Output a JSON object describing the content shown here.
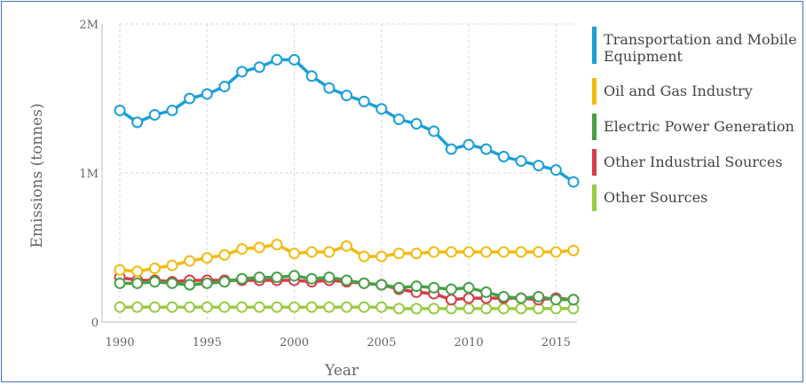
{
  "chart_data": {
    "type": "line",
    "xlabel": "Year",
    "ylabel": "Emissions (tonnes)",
    "xlim": [
      1990,
      2016
    ],
    "ylim": [
      0,
      2000000
    ],
    "x_ticks": [
      1990,
      1995,
      2000,
      2005,
      2010,
      2015
    ],
    "y_ticks": [
      {
        "value": 0,
        "label": "0"
      },
      {
        "value": 1000000,
        "label": "1M"
      },
      {
        "value": 2000000,
        "label": "2M"
      }
    ],
    "grid": true,
    "legend_position": "right",
    "x": [
      1990,
      1991,
      1992,
      1993,
      1994,
      1995,
      1996,
      1997,
      1998,
      1999,
      2000,
      2001,
      2002,
      2003,
      2004,
      2005,
      2006,
      2007,
      2008,
      2009,
      2010,
      2011,
      2012,
      2013,
      2014,
      2015,
      2016
    ],
    "series": [
      {
        "name": "Transportation and Mobile Equipment",
        "legend_lines": [
          "Transportation and Mobile",
          "Equipment"
        ],
        "color": "#1a9fd8",
        "values": [
          1420000,
          1340000,
          1390000,
          1420000,
          1500000,
          1530000,
          1580000,
          1680000,
          1710000,
          1760000,
          1760000,
          1650000,
          1570000,
          1520000,
          1480000,
          1430000,
          1360000,
          1330000,
          1280000,
          1160000,
          1190000,
          1160000,
          1110000,
          1080000,
          1050000,
          1020000,
          940000
        ]
      },
      {
        "name": "Oil and Gas Industry",
        "legend_lines": [
          "Oil and Gas Industry"
        ],
        "color": "#f2bb12",
        "values": [
          350000,
          340000,
          360000,
          380000,
          410000,
          430000,
          450000,
          490000,
          500000,
          520000,
          460000,
          470000,
          470000,
          510000,
          440000,
          440000,
          460000,
          460000,
          470000,
          470000,
          470000,
          470000,
          470000,
          470000,
          470000,
          470000,
          480000
        ]
      },
      {
        "name": "Electric Power Generation",
        "legend_lines": [
          "Electric Power Generation"
        ],
        "color": "#47a046",
        "values": [
          260000,
          260000,
          270000,
          260000,
          250000,
          260000,
          270000,
          290000,
          300000,
          300000,
          310000,
          290000,
          300000,
          280000,
          260000,
          250000,
          230000,
          240000,
          230000,
          220000,
          230000,
          200000,
          170000,
          160000,
          170000,
          150000,
          150000
        ]
      },
      {
        "name": "Other Industrial Sources",
        "legend_lines": [
          "Other Industrial Sources"
        ],
        "color": "#d63c4a",
        "values": [
          300000,
          280000,
          280000,
          270000,
          280000,
          280000,
          280000,
          280000,
          280000,
          280000,
          280000,
          270000,
          280000,
          270000,
          260000,
          250000,
          220000,
          200000,
          190000,
          150000,
          160000,
          160000,
          160000,
          160000,
          150000,
          160000,
          150000
        ]
      },
      {
        "name": "Other Sources",
        "legend_lines": [
          "Other Sources"
        ],
        "color": "#9acb45",
        "values": [
          100000,
          100000,
          100000,
          100000,
          100000,
          100000,
          100000,
          100000,
          100000,
          100000,
          100000,
          100000,
          100000,
          100000,
          100000,
          100000,
          90000,
          90000,
          90000,
          90000,
          90000,
          90000,
          90000,
          90000,
          90000,
          90000,
          90000
        ]
      }
    ]
  }
}
